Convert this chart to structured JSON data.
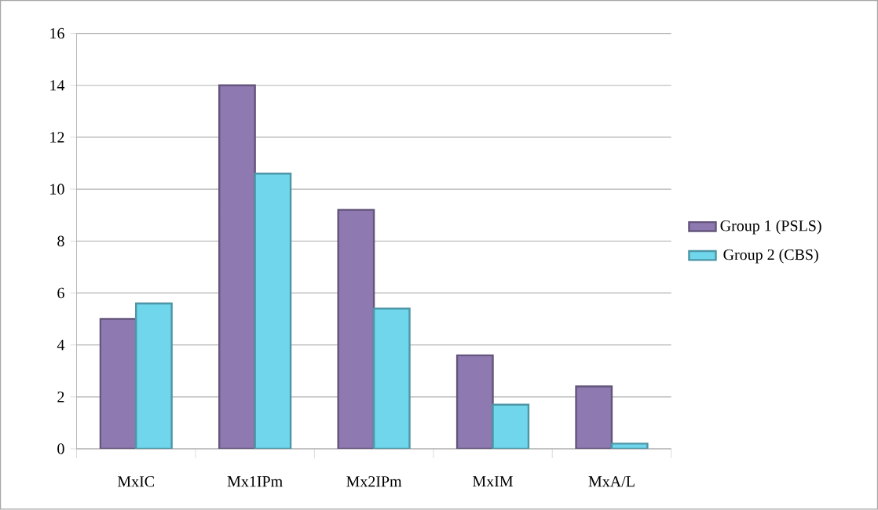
{
  "chart_data": {
    "type": "bar",
    "categories": [
      "MxIC",
      "Mx1IPm",
      "Mx2IPm",
      "MxIM",
      "MxA/L"
    ],
    "series": [
      {
        "name": "Group 1 (PSLS)",
        "color": "#8f79b1",
        "values": [
          5.0,
          14.0,
          9.2,
          3.6,
          2.4
        ]
      },
      {
        "name": "Group 2 (CBS)",
        "color": "#6fd6ec",
        "values": [
          5.6,
          10.6,
          5.4,
          1.7,
          0.2
        ]
      }
    ],
    "ylim": [
      0,
      16
    ],
    "yticks": [
      0,
      2,
      4,
      6,
      8,
      10,
      12,
      14,
      16
    ],
    "grid": "y",
    "legend": "right"
  }
}
